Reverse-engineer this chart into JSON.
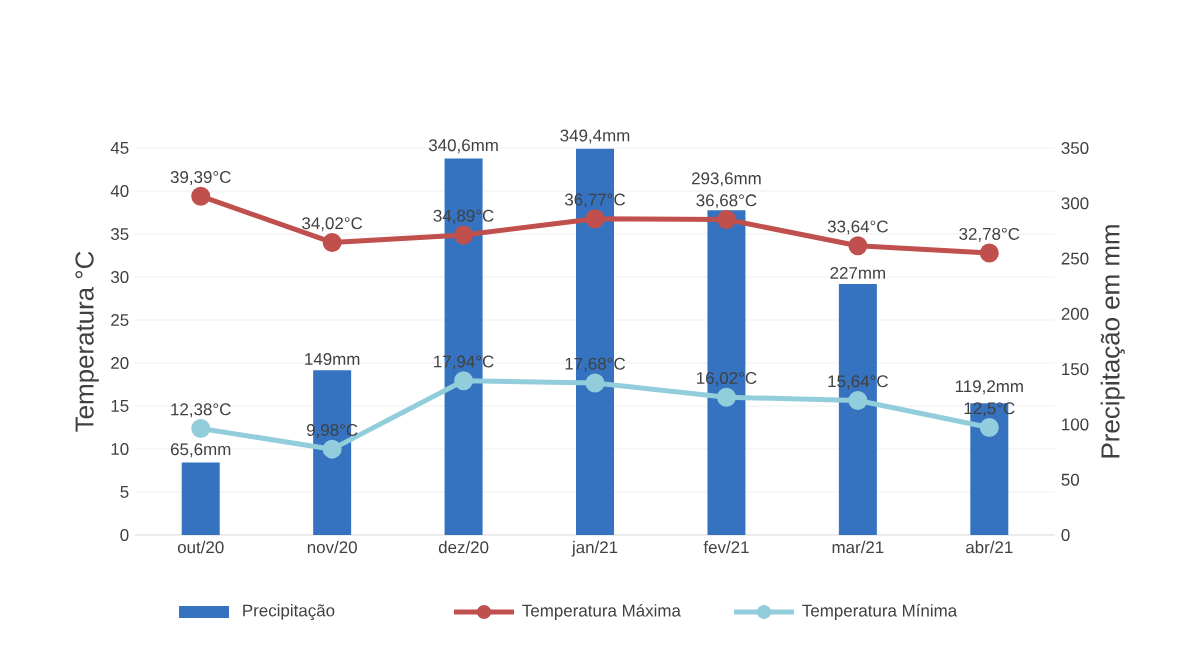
{
  "chart_data": {
    "type": "line",
    "categories": [
      "out/20",
      "nov/20",
      "dez/20",
      "jan/21",
      "fev/21",
      "mar/21",
      "abr/21"
    ],
    "series": [
      {
        "name": "Precipitação",
        "type": "bar",
        "axis": "y2",
        "color": "#3572c0",
        "values": [
          65.6,
          149,
          340.6,
          349.4,
          293.6,
          227,
          119.2
        ],
        "value_labels": [
          "65,6mm",
          "149mm",
          "340,6mm",
          "349,4mm",
          "293,6mm",
          "227mm",
          "119,2mm"
        ]
      },
      {
        "name": "Temperatura Máxima",
        "color": "#c0504d",
        "values": [
          39.39,
          34.02,
          34.89,
          36.77,
          36.68,
          33.64,
          32.78
        ],
        "value_labels": [
          "39,39°C",
          "34,02°C",
          "34,89°C",
          "36,77°C",
          "36,68°C",
          "33,64°C",
          "32,78°C"
        ]
      },
      {
        "name": "Temperatura Mínima",
        "color": "#92cddc",
        "values": [
          12.38,
          9.98,
          17.94,
          17.68,
          16.02,
          15.64,
          12.5
        ],
        "value_labels": [
          "12,38°C",
          "9,98°C",
          "17,94°C",
          "17,68°C",
          "16,02°C",
          "15,64°C",
          "12,5°C"
        ]
      }
    ],
    "ylabel": "Temperatura °C",
    "y2label": "Precipitação em mm",
    "ylim": [
      0,
      45
    ],
    "yticks": [
      0,
      5,
      10,
      15,
      20,
      25,
      30,
      35,
      40,
      45
    ],
    "y2lim": [
      0,
      350
    ],
    "y2ticks": [
      0,
      50,
      100,
      150,
      200,
      250,
      300,
      350
    ],
    "grid": "y",
    "legend": "bottom",
    "marker": "circle",
    "line_style": "solid"
  }
}
